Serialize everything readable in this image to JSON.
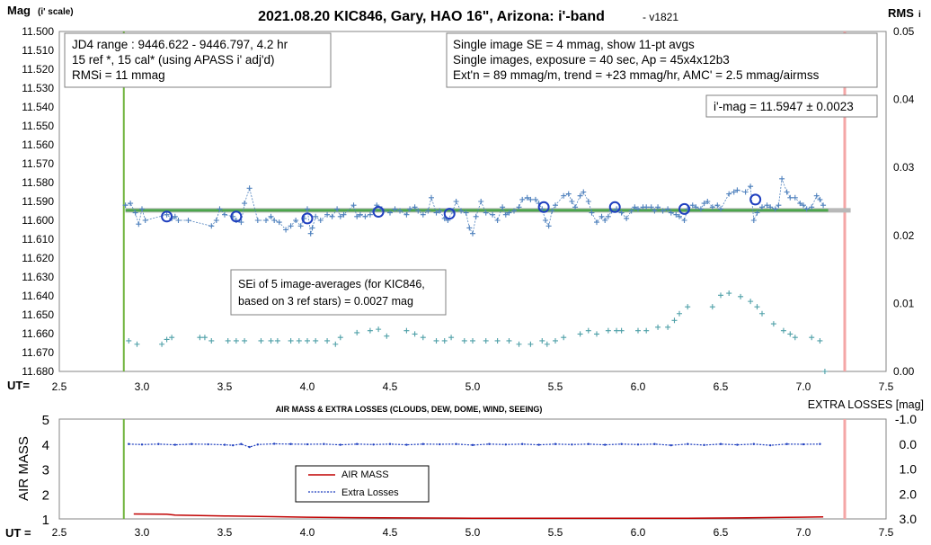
{
  "chart_data": [
    {
      "type": "scatter",
      "title": "2021.08.20 KIC846, Gary, HAO 16\", Arizona: i'-band",
      "version": "- v1821",
      "ylabel_main": "Mag",
      "ylabel_sub": "(i' scale)",
      "y2label": "RMS",
      "y2label_sub": "i",
      "xlabel": "UT=",
      "xlim": [
        2.5,
        7.5
      ],
      "ylim": [
        11.5,
        11.68
      ],
      "y_reversed": true,
      "y2lim": [
        0,
        0.05
      ],
      "x_ticks": [
        "2.5",
        "3.0",
        "3.5",
        "4.0",
        "4.5",
        "5.0",
        "5.5",
        "6.0",
        "6.5",
        "7.0",
        "7.5"
      ],
      "y_ticks": [
        "11.500",
        "11.510",
        "11.520",
        "11.530",
        "11.540",
        "11.550",
        "11.560",
        "11.570",
        "11.580",
        "11.590",
        "11.600",
        "11.610",
        "11.620",
        "11.630",
        "11.640",
        "11.650",
        "11.660",
        "11.670",
        "11.680"
      ],
      "y2_ticks": [
        "0.05",
        "0.04",
        "0.03",
        "0.02",
        "0.01",
        "0.00"
      ],
      "start_line_x": 2.89,
      "end_line_x": 7.25,
      "mean_line": {
        "x": [
          2.9,
          7.15
        ],
        "y": 11.5947
      },
      "series": [
        {
          "values_kind": "single-image",
          "color": "#4f81bd",
          "points": [
            [
              2.9,
              11.592
            ],
            [
              2.93,
              11.591
            ],
            [
              2.96,
              11.596
            ],
            [
              2.98,
              11.602
            ],
            [
              3.0,
              11.594
            ],
            [
              3.02,
              11.6
            ],
            [
              3.15,
              11.597
            ],
            [
              3.18,
              11.599
            ],
            [
              3.2,
              11.598
            ],
            [
              3.22,
              11.6
            ],
            [
              3.28,
              11.6
            ],
            [
              3.42,
              11.603
            ],
            [
              3.45,
              11.6
            ],
            [
              3.47,
              11.594
            ],
            [
              3.5,
              11.597
            ],
            [
              3.55,
              11.598
            ],
            [
              3.57,
              11.6
            ],
            [
              3.6,
              11.601
            ],
            [
              3.62,
              11.591
            ],
            [
              3.65,
              11.583
            ],
            [
              3.7,
              11.6
            ],
            [
              3.75,
              11.6
            ],
            [
              3.78,
              11.598
            ],
            [
              3.8,
              11.6
            ],
            [
              3.83,
              11.601
            ],
            [
              3.87,
              11.605
            ],
            [
              3.9,
              11.603
            ],
            [
              3.93,
              11.6
            ],
            [
              3.96,
              11.603
            ],
            [
              3.98,
              11.599
            ],
            [
              4.0,
              11.594
            ],
            [
              4.02,
              11.607
            ],
            [
              4.03,
              11.604
            ],
            [
              4.05,
              11.598
            ],
            [
              4.08,
              11.6
            ],
            [
              4.12,
              11.597
            ],
            [
              4.15,
              11.598
            ],
            [
              4.18,
              11.594
            ],
            [
              4.2,
              11.598
            ],
            [
              4.22,
              11.597
            ],
            [
              4.28,
              11.592
            ],
            [
              4.3,
              11.598
            ],
            [
              4.32,
              11.597
            ],
            [
              4.35,
              11.598
            ],
            [
              4.38,
              11.597
            ],
            [
              4.4,
              11.595
            ],
            [
              4.42,
              11.592
            ],
            [
              4.45,
              11.594
            ],
            [
              4.5,
              11.596
            ],
            [
              4.53,
              11.594
            ],
            [
              4.56,
              11.595
            ],
            [
              4.6,
              11.597
            ],
            [
              4.62,
              11.594
            ],
            [
              4.65,
              11.593
            ],
            [
              4.67,
              11.595
            ],
            [
              4.7,
              11.597
            ],
            [
              4.73,
              11.595
            ],
            [
              4.75,
              11.588
            ],
            [
              4.78,
              11.596
            ],
            [
              4.8,
              11.595
            ],
            [
              4.83,
              11.599
            ],
            [
              4.85,
              11.6
            ],
            [
              4.88,
              11.595
            ],
            [
              4.9,
              11.59
            ],
            [
              4.93,
              11.595
            ],
            [
              4.96,
              11.596
            ],
            [
              4.98,
              11.604
            ],
            [
              5.0,
              11.607
            ],
            [
              5.02,
              11.598
            ],
            [
              5.05,
              11.59
            ],
            [
              5.08,
              11.596
            ],
            [
              5.12,
              11.597
            ],
            [
              5.15,
              11.6
            ],
            [
              5.18,
              11.593
            ],
            [
              5.2,
              11.597
            ],
            [
              5.22,
              11.596
            ],
            [
              5.25,
              11.595
            ],
            [
              5.28,
              11.593
            ],
            [
              5.3,
              11.589
            ],
            [
              5.33,
              11.588
            ],
            [
              5.35,
              11.589
            ],
            [
              5.38,
              11.589
            ],
            [
              5.4,
              11.591
            ],
            [
              5.42,
              11.594
            ],
            [
              5.44,
              11.6
            ],
            [
              5.46,
              11.603
            ],
            [
              5.48,
              11.595
            ],
            [
              5.5,
              11.592
            ],
            [
              5.55,
              11.587
            ],
            [
              5.58,
              11.586
            ],
            [
              5.6,
              11.59
            ],
            [
              5.62,
              11.593
            ],
            [
              5.65,
              11.587
            ],
            [
              5.67,
              11.585
            ],
            [
              5.7,
              11.59
            ],
            [
              5.72,
              11.596
            ],
            [
              5.75,
              11.601
            ],
            [
              5.78,
              11.598
            ],
            [
              5.8,
              11.6
            ],
            [
              5.82,
              11.598
            ],
            [
              5.84,
              11.595
            ],
            [
              5.87,
              11.594
            ],
            [
              5.9,
              11.596
            ],
            [
              5.93,
              11.599
            ],
            [
              5.96,
              11.595
            ],
            [
              5.98,
              11.593
            ],
            [
              6.0,
              11.594
            ],
            [
              6.03,
              11.593
            ],
            [
              6.05,
              11.593
            ],
            [
              6.08,
              11.593
            ],
            [
              6.1,
              11.595
            ],
            [
              6.12,
              11.593
            ],
            [
              6.15,
              11.595
            ],
            [
              6.18,
              11.594
            ],
            [
              6.2,
              11.596
            ],
            [
              6.23,
              11.597
            ],
            [
              6.25,
              11.598
            ],
            [
              6.28,
              11.6
            ],
            [
              6.3,
              11.594
            ],
            [
              6.33,
              11.592
            ],
            [
              6.35,
              11.593
            ],
            [
              6.38,
              11.594
            ],
            [
              6.4,
              11.591
            ],
            [
              6.42,
              11.59
            ],
            [
              6.45,
              11.593
            ],
            [
              6.48,
              11.592
            ],
            [
              6.5,
              11.594
            ],
            [
              6.55,
              11.586
            ],
            [
              6.58,
              11.585
            ],
            [
              6.6,
              11.584
            ],
            [
              6.65,
              11.585
            ],
            [
              6.68,
              11.582
            ],
            [
              6.7,
              11.6
            ],
            [
              6.72,
              11.596
            ],
            [
              6.75,
              11.593
            ],
            [
              6.78,
              11.592
            ],
            [
              6.8,
              11.593
            ],
            [
              6.83,
              11.594
            ],
            [
              6.85,
              11.592
            ],
            [
              6.87,
              11.578
            ],
            [
              6.9,
              11.585
            ],
            [
              6.92,
              11.588
            ],
            [
              6.95,
              11.588
            ],
            [
              6.98,
              11.591
            ],
            [
              7.0,
              11.592
            ],
            [
              7.02,
              11.594
            ],
            [
              7.05,
              11.593
            ],
            [
              7.08,
              11.587
            ],
            [
              7.1,
              11.589
            ],
            [
              7.12,
              11.592
            ]
          ]
        },
        {
          "values_kind": "11-pt averages",
          "color": "#1f3fbf",
          "x": [
            3.15,
            3.57,
            4.0,
            4.43,
            4.86,
            5.43,
            5.86,
            6.28,
            6.71
          ],
          "y": [
            11.598,
            11.598,
            11.599,
            11.5955,
            11.5965,
            11.593,
            11.593,
            11.594,
            11.589
          ]
        },
        {
          "values_kind": "RMS (right axis)",
          "color": "#4fa0a8",
          "x": [
            2.92,
            2.97,
            3.12,
            3.15,
            3.18,
            3.35,
            3.38,
            3.42,
            3.52,
            3.57,
            3.62,
            3.72,
            3.78,
            3.82,
            3.9,
            3.95,
            4.0,
            4.05,
            4.12,
            4.17,
            4.2,
            4.3,
            4.38,
            4.43,
            4.48,
            4.6,
            4.65,
            4.7,
            4.78,
            4.83,
            4.87,
            4.95,
            5.0,
            5.08,
            5.15,
            5.22,
            5.28,
            5.35,
            5.42,
            5.45,
            5.5,
            5.55,
            5.65,
            5.7,
            5.75,
            5.82,
            5.87,
            5.9,
            6.0,
            6.05,
            6.12,
            6.18,
            6.22,
            6.25,
            6.3,
            6.45,
            6.5,
            6.55,
            6.62,
            6.68,
            6.72,
            6.75,
            6.82,
            6.88,
            6.92,
            6.95,
            7.05,
            7.1,
            7.13
          ],
          "y": [
            0.0045,
            0.004,
            0.004,
            0.0047,
            0.005,
            0.005,
            0.005,
            0.0045,
            0.0045,
            0.0045,
            0.0045,
            0.0045,
            0.0045,
            0.0045,
            0.0045,
            0.0045,
            0.0045,
            0.0045,
            0.0045,
            0.004,
            0.005,
            0.0057,
            0.006,
            0.0062,
            0.0052,
            0.006,
            0.0055,
            0.005,
            0.0045,
            0.0045,
            0.005,
            0.0045,
            0.0045,
            0.0045,
            0.0045,
            0.0045,
            0.004,
            0.004,
            0.0045,
            0.004,
            0.0045,
            0.005,
            0.0055,
            0.006,
            0.0055,
            0.006,
            0.006,
            0.006,
            0.006,
            0.006,
            0.0065,
            0.0065,
            0.0075,
            0.0085,
            0.0095,
            0.0095,
            0.0112,
            0.0115,
            0.011,
            0.0103,
            0.0095,
            0.0085,
            0.007,
            0.006,
            0.0055,
            0.005,
            0.005,
            0.0045,
            0.0
          ]
        }
      ]
    },
    {
      "type": "line",
      "title": "AIR MASS & EXTRA LOSSES (CLOUDS, DEW, DOME, WIND, SEEING)",
      "ylabel": "AIR MASS",
      "y2label": "EXTRA LOSSES [mag]",
      "xlabel": "UT =",
      "xlim": [
        2.5,
        7.5
      ],
      "ylim": [
        1,
        5
      ],
      "y2lim": [
        -1.0,
        3.0
      ],
      "y2_reversed": true,
      "x_ticks": [
        "2.5",
        "3.0",
        "3.5",
        "4.0",
        "4.5",
        "5.0",
        "5.5",
        "6.0",
        "6.5",
        "7.0",
        "7.5"
      ],
      "y_ticks": [
        "5",
        "4",
        "3",
        "2",
        "1"
      ],
      "y2_ticks": [
        "-1.0",
        "0.0",
        "1.0",
        "2.0",
        "3.0"
      ],
      "start_line_x": 2.89,
      "end_line_x": 7.25,
      "series": [
        {
          "name": "AIR MASS",
          "color": "#c00000",
          "x": [
            2.95,
            3.15,
            3.2,
            3.5,
            3.8,
            4.0,
            4.3,
            4.6,
            5.0,
            5.5,
            6.0,
            6.3,
            6.6,
            6.9,
            7.12
          ],
          "y": [
            1.2,
            1.19,
            1.15,
            1.12,
            1.09,
            1.07,
            1.05,
            1.04,
            1.03,
            1.03,
            1.03,
            1.03,
            1.04,
            1.06,
            1.08
          ]
        },
        {
          "name": "Extra Losses",
          "color": "#1f3fbf",
          "x": [
            2.92,
            3.0,
            3.1,
            3.2,
            3.3,
            3.4,
            3.5,
            3.55,
            3.6,
            3.65,
            3.7,
            3.8,
            3.9,
            4.0,
            4.1,
            4.2,
            4.3,
            4.4,
            4.5,
            4.6,
            4.7,
            4.8,
            4.9,
            5.0,
            5.1,
            5.2,
            5.3,
            5.4,
            5.5,
            5.6,
            5.7,
            5.8,
            5.9,
            6.0,
            6.1,
            6.2,
            6.3,
            6.4,
            6.5,
            6.6,
            6.7,
            6.8,
            6.9,
            7.0,
            7.1
          ],
          "y": [
            0.0,
            0.02,
            0.0,
            0.03,
            0.0,
            0.01,
            0.03,
            0.05,
            0.0,
            0.12,
            0.02,
            -0.01,
            0.0,
            0.01,
            0.0,
            0.03,
            0.0,
            0.02,
            0.0,
            0.03,
            0.0,
            0.01,
            0.0,
            0.04,
            0.0,
            0.02,
            0.0,
            0.03,
            0.0,
            0.02,
            0.0,
            0.03,
            0.0,
            0.02,
            0.0,
            0.05,
            0.0,
            0.04,
            0.0,
            0.03,
            0.0,
            0.05,
            0.0,
            0.01,
            0.0
          ]
        }
      ]
    }
  ],
  "annotations": {
    "left_box": [
      "JD4 range : 9446.622 - 9446.797, 4.2  hr",
      "15 ref *, 15 cal* (using APASS i' adj'd)",
      "RMSi = 11 mmag"
    ],
    "right_box": [
      "Single image SE = 4 mmag, show 11-pt avgs",
      "Single images, exposure = 40 sec, Ap = 45x4x12b3",
      "Ext'n = 89 mmag/m, trend = +23 mmag/hr, AMC' = 2.5 mmag/airmss"
    ],
    "imag_box": "i'-mag = 11.5947 ± 0.0023",
    "sei_box": [
      "SEi of 5 image-averages (for KIC846,",
      "based on 3 ref stars) = 0.0027 mag"
    ]
  },
  "colors": {
    "start_line": "#70b43c",
    "end_line": "#f4a6a6",
    "mean_line": "#4ca64c",
    "mean_line_shadow": "#b8b8b8"
  }
}
